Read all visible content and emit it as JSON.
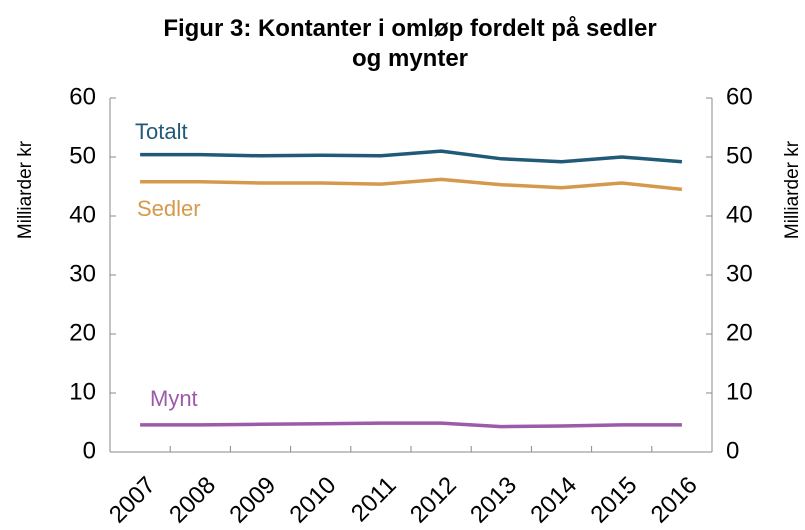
{
  "chart_data": {
    "type": "line",
    "title": "Figur 3: Kontanter i omløp fordelt på sedler og mynter",
    "ylabel": "Milliarder kr",
    "y2label": "Milliarder kr",
    "categories": [
      "2007",
      "2008",
      "2009",
      "2010",
      "2011",
      "2012",
      "2013",
      "2014",
      "2015",
      "2016"
    ],
    "series": [
      {
        "name": "Totalt",
        "color": "#215a78",
        "values": [
          50.4,
          50.4,
          50.2,
          50.3,
          50.2,
          51.0,
          49.7,
          49.2,
          50.0,
          49.2
        ]
      },
      {
        "name": "Sedler",
        "color": "#d6994c",
        "values": [
          45.8,
          45.8,
          45.6,
          45.6,
          45.4,
          46.2,
          45.3,
          44.8,
          45.6,
          44.5
        ]
      },
      {
        "name": "Mynt",
        "color": "#9c5ba8",
        "values": [
          4.6,
          4.6,
          4.7,
          4.8,
          4.9,
          4.9,
          4.3,
          4.4,
          4.6,
          4.6
        ]
      }
    ],
    "ylim": [
      0,
      60
    ],
    "yticks": [
      0,
      10,
      20,
      30,
      40,
      50,
      60
    ],
    "y2lim": [
      0,
      60
    ],
    "y2ticks": [
      0,
      10,
      20,
      30,
      40,
      50,
      60
    ],
    "grid": false
  }
}
